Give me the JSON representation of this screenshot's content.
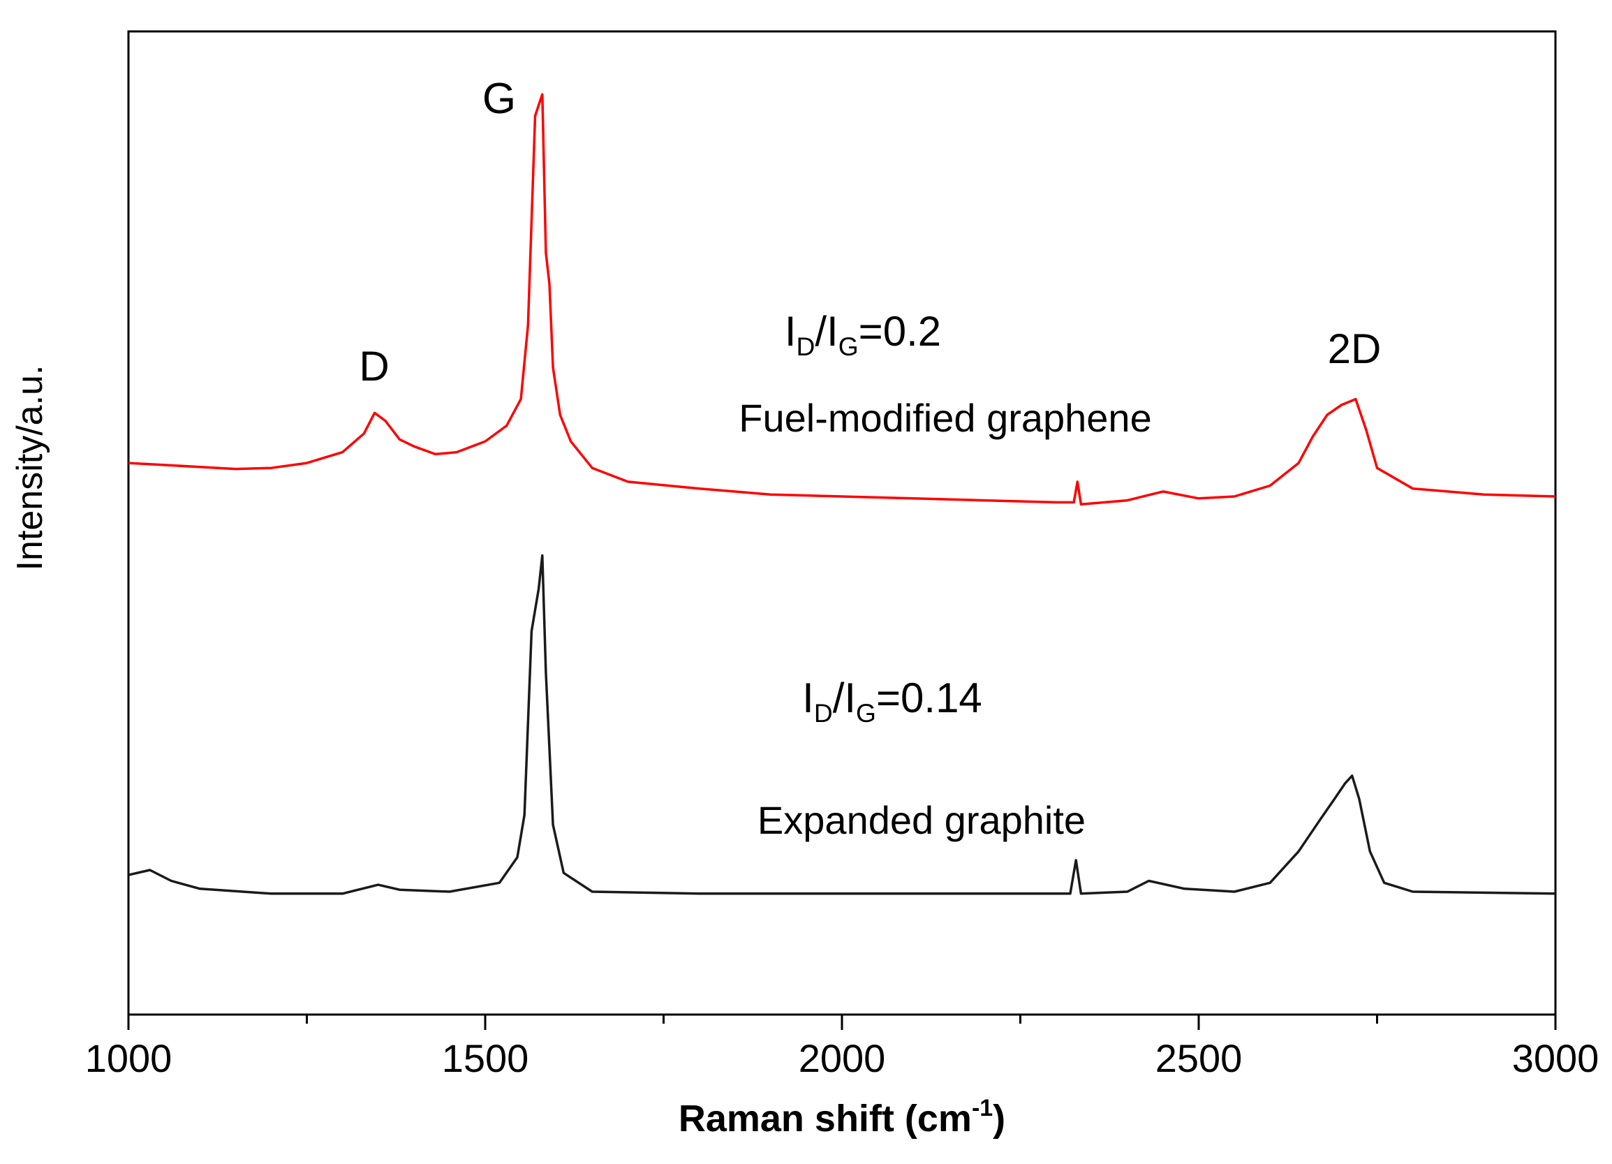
{
  "chart_data": {
    "type": "line",
    "y_label": "Intensity/a.u.",
    "x_label_parts": [
      "Raman shift (cm",
      "-1",
      ")"
    ],
    "xlim": [
      1000,
      3000
    ],
    "xticks": [
      1000,
      1500,
      2000,
      2500,
      3000
    ],
    "xminorticks": [
      1250,
      1750,
      2250,
      2750
    ],
    "ylim": [
      0,
      100
    ],
    "annotations": [
      {
        "text": "G"
      },
      {
        "text": "D"
      },
      {
        "text": "2D"
      },
      {
        "parts": [
          "I",
          "D",
          "/I",
          "G",
          "=0.2"
        ]
      },
      {
        "text": "Fuel-modified graphene"
      },
      {
        "parts": [
          "I",
          "D",
          "/I",
          "G",
          "=0.14"
        ]
      },
      {
        "text": "Expanded graphite"
      }
    ],
    "series": [
      {
        "name": "Fuel-modified graphene",
        "color": "#ff0000",
        "x": [
          1000,
          1050,
          1100,
          1150,
          1200,
          1250,
          1300,
          1330,
          1345,
          1360,
          1380,
          1400,
          1430,
          1460,
          1500,
          1530,
          1550,
          1560,
          1570,
          1575,
          1580,
          1585,
          1590,
          1595,
          1605,
          1620,
          1650,
          1700,
          1800,
          1900,
          2000,
          2100,
          2200,
          2300,
          2325,
          2330,
          2335,
          2400,
          2450,
          2500,
          2550,
          2600,
          2640,
          2660,
          2680,
          2700,
          2720,
          2735,
          2750,
          2800,
          2900,
          3000
        ],
        "values": [
          56.1,
          55.9,
          55.7,
          55.5,
          55.6,
          56.1,
          57.2,
          59.1,
          61.2,
          60.4,
          58.5,
          57.8,
          57.0,
          57.2,
          58.3,
          59.9,
          62.6,
          70.1,
          91.4,
          92.5,
          93.6,
          77.5,
          74.3,
          65.8,
          61.0,
          58.3,
          55.6,
          54.2,
          53.5,
          52.9,
          52.7,
          52.5,
          52.3,
          52.1,
          52.1,
          54.2,
          51.9,
          52.3,
          53.2,
          52.5,
          52.7,
          53.8,
          56.1,
          58.8,
          61.0,
          62.0,
          62.6,
          59.4,
          55.6,
          53.5,
          52.9,
          52.7
        ]
      },
      {
        "name": "Expanded graphite",
        "color": "#1a1a1a",
        "x": [
          1000,
          1030,
          1060,
          1100,
          1200,
          1300,
          1350,
          1380,
          1450,
          1520,
          1545,
          1555,
          1565,
          1575,
          1580,
          1585,
          1595,
          1610,
          1650,
          1800,
          2000,
          2200,
          2320,
          2328,
          2335,
          2400,
          2430,
          2480,
          2550,
          2600,
          2640,
          2670,
          2690,
          2705,
          2715,
          2725,
          2740,
          2760,
          2800,
          3000
        ],
        "values": [
          14.2,
          14.7,
          13.6,
          12.8,
          12.3,
          12.3,
          13.2,
          12.7,
          12.5,
          13.4,
          16.0,
          20.3,
          39.0,
          43.3,
          46.7,
          34.8,
          19.3,
          14.4,
          12.5,
          12.3,
          12.3,
          12.3,
          12.3,
          15.7,
          12.3,
          12.5,
          13.6,
          12.8,
          12.5,
          13.4,
          16.6,
          19.8,
          21.9,
          23.5,
          24.3,
          21.9,
          16.6,
          13.4,
          12.5,
          12.3
        ]
      }
    ]
  }
}
